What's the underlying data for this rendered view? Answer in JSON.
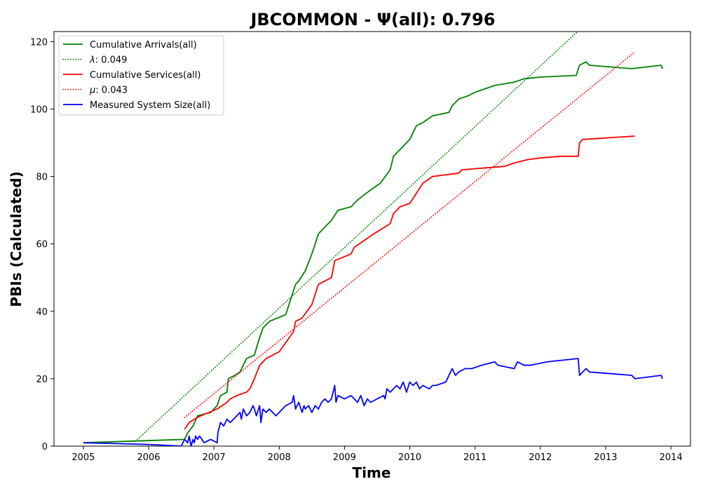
{
  "chart_data": {
    "type": "line",
    "title": "JBCOMMON -  Ψ(all): 0.796",
    "xlabel": "Time",
    "ylabel": "PBIs (Calculated)",
    "xlim": [
      2004.55,
      2014.3
    ],
    "ylim": [
      0,
      123
    ],
    "x_ticks": [
      2005,
      2006,
      2007,
      2008,
      2009,
      2010,
      2011,
      2012,
      2013,
      2014
    ],
    "x_tick_labels": [
      "2005",
      "2006",
      "2007",
      "2008",
      "2009",
      "2010",
      "2011",
      "2012",
      "2013",
      "2014"
    ],
    "y_ticks": [
      0,
      20,
      40,
      60,
      80,
      100,
      120
    ],
    "y_tick_labels": [
      "0",
      "20",
      "40",
      "60",
      "80",
      "100",
      "120"
    ],
    "grid": false,
    "legend_position": "top-left",
    "series": [
      {
        "name": "Cumulative Arrivals(all)",
        "color": "#008000",
        "style": "solid",
        "x": [
          2005.0,
          2006.55,
          2006.6,
          2006.68,
          2006.75,
          2006.95,
          2007.05,
          2007.1,
          2007.2,
          2007.22,
          2007.32,
          2007.4,
          2007.45,
          2007.5,
          2007.62,
          2007.68,
          2007.75,
          2007.85,
          2008.1,
          2008.2,
          2008.25,
          2008.3,
          2008.4,
          2008.5,
          2008.6,
          2008.8,
          2008.9,
          2009.1,
          2009.2,
          2009.4,
          2009.55,
          2009.7,
          2009.75,
          2009.85,
          2010.0,
          2010.1,
          2010.2,
          2010.35,
          2010.6,
          2010.65,
          2010.75,
          2010.9,
          2011.0,
          2011.3,
          2011.6,
          2011.75,
          2012.0,
          2012.55,
          2012.6,
          2012.7,
          2012.75,
          2013.4,
          2013.85,
          2013.87
        ],
        "values": [
          1,
          2,
          4,
          6,
          9,
          10,
          12,
          15,
          16,
          20,
          21,
          22,
          24,
          26,
          27,
          31,
          35,
          37,
          39,
          45,
          48,
          49,
          52,
          57,
          63,
          67,
          70,
          71,
          73,
          76,
          78,
          82,
          86,
          88,
          91,
          95,
          96,
          98,
          99,
          101,
          103,
          104,
          105,
          107,
          108,
          109,
          109.5,
          110,
          113,
          114,
          113,
          112,
          113,
          112
        ],
        "smooth": true
      },
      {
        "name": "λ: 0.049",
        "color": "#008000",
        "style": "dotted",
        "x": [
          2005.8,
          2012.57
        ],
        "values": [
          1.5,
          123
        ]
      },
      {
        "name": "Cumulative Services(all)",
        "color": "#ff0000",
        "style": "solid",
        "x": [
          2006.55,
          2006.62,
          2006.7,
          2006.8,
          2007.05,
          2007.2,
          2007.25,
          2007.35,
          2007.5,
          2007.55,
          2007.62,
          2007.7,
          2007.8,
          2007.9,
          2008.0,
          2008.22,
          2008.25,
          2008.35,
          2008.5,
          2008.6,
          2008.8,
          2008.85,
          2009.1,
          2009.15,
          2009.3,
          2009.45,
          2009.7,
          2009.75,
          2009.85,
          2010.0,
          2010.1,
          2010.2,
          2010.35,
          2010.75,
          2010.8,
          2011.45,
          2011.6,
          2011.8,
          2012.0,
          2012.3,
          2012.58,
          2012.6,
          2012.65,
          2013.45
        ],
        "values": [
          5,
          7,
          8,
          9,
          11,
          13,
          14,
          15,
          16,
          17,
          20,
          24,
          26,
          27,
          28,
          34,
          37,
          38,
          42,
          48,
          50,
          55,
          57,
          59,
          61,
          63,
          66,
          69,
          71,
          72,
          75,
          78,
          80,
          81,
          82,
          83,
          84,
          85,
          85.5,
          86,
          86,
          90,
          91,
          92
        ],
        "smooth": true
      },
      {
        "name": "μ: 0.043",
        "color": "#ff0000",
        "style": "dotted",
        "x": [
          2006.55,
          2013.45
        ],
        "values": [
          8.5,
          117
        ]
      },
      {
        "name": "Measured System Size(all)",
        "color": "#0000ff",
        "style": "solid",
        "x": [
          2005.0,
          2006.0,
          2006.5,
          2006.55,
          2006.6,
          2006.62,
          2006.65,
          2006.68,
          2006.7,
          2006.72,
          2006.75,
          2006.78,
          2006.85,
          2006.95,
          2007.05,
          2007.06,
          2007.1,
          2007.15,
          2007.2,
          2007.25,
          2007.3,
          2007.35,
          2007.4,
          2007.42,
          2007.45,
          2007.5,
          2007.55,
          2007.6,
          2007.62,
          2007.65,
          2007.7,
          2007.72,
          2007.75,
          2007.8,
          2007.85,
          2007.9,
          2007.95,
          2008.0,
          2008.1,
          2008.2,
          2008.22,
          2008.25,
          2008.3,
          2008.35,
          2008.38,
          2008.4,
          2008.45,
          2008.5,
          2008.55,
          2008.6,
          2008.65,
          2008.7,
          2008.75,
          2008.8,
          2008.85,
          2008.87,
          2008.9,
          2009.0,
          2009.1,
          2009.15,
          2009.2,
          2009.25,
          2009.3,
          2009.35,
          2009.4,
          2009.5,
          2009.6,
          2009.62,
          2009.65,
          2009.7,
          2009.75,
          2009.8,
          2009.85,
          2009.9,
          2009.95,
          2010.0,
          2010.05,
          2010.1,
          2010.15,
          2010.2,
          2010.3,
          2010.35,
          2010.4,
          2010.55,
          2010.65,
          2010.7,
          2010.75,
          2010.85,
          2010.95,
          2011.1,
          2011.3,
          2011.35,
          2011.6,
          2011.65,
          2011.75,
          2011.85,
          2012.1,
          2012.58,
          2012.6,
          2012.65,
          2012.7,
          2012.75,
          2013.4,
          2013.45,
          2013.85,
          2013.87
        ],
        "values": [
          1,
          0.5,
          0,
          2,
          1,
          3,
          0,
          2,
          1,
          3,
          2,
          3,
          1,
          2,
          1,
          4,
          7,
          6,
          8,
          7,
          8,
          9,
          10,
          8,
          11,
          9,
          10,
          12,
          11,
          9,
          12,
          7,
          11,
          10,
          11,
          10,
          9,
          10,
          12,
          13,
          15,
          11,
          13,
          10,
          12,
          11,
          12,
          10,
          12,
          11,
          13,
          14,
          13,
          14,
          18,
          13,
          15,
          14,
          15,
          14,
          13,
          15,
          12,
          14,
          13,
          14,
          15,
          14,
          17,
          16,
          17,
          18,
          17,
          19,
          16,
          19,
          18,
          19,
          17,
          18,
          17,
          18,
          18,
          19,
          23,
          21,
          22,
          23,
          23,
          24,
          25,
          24,
          23,
          25,
          24,
          24,
          25,
          26,
          21,
          22,
          23,
          22,
          21,
          20,
          21,
          20
        ]
      }
    ],
    "legend": [
      {
        "label": "Cumulative Arrivals(all)",
        "color": "#008000",
        "style": "solid"
      },
      {
        "label": "λ: 0.049",
        "color": "#008000",
        "style": "dotted",
        "symbol": "λ",
        "rest": ": 0.049"
      },
      {
        "label": "Cumulative Services(all)",
        "color": "#ff0000",
        "style": "solid"
      },
      {
        "label": "μ: 0.043",
        "color": "#ff0000",
        "style": "dotted",
        "symbol": "μ",
        "rest": ": 0.043"
      },
      {
        "label": "Measured System Size(all)",
        "color": "#0000ff",
        "style": "solid"
      }
    ]
  }
}
